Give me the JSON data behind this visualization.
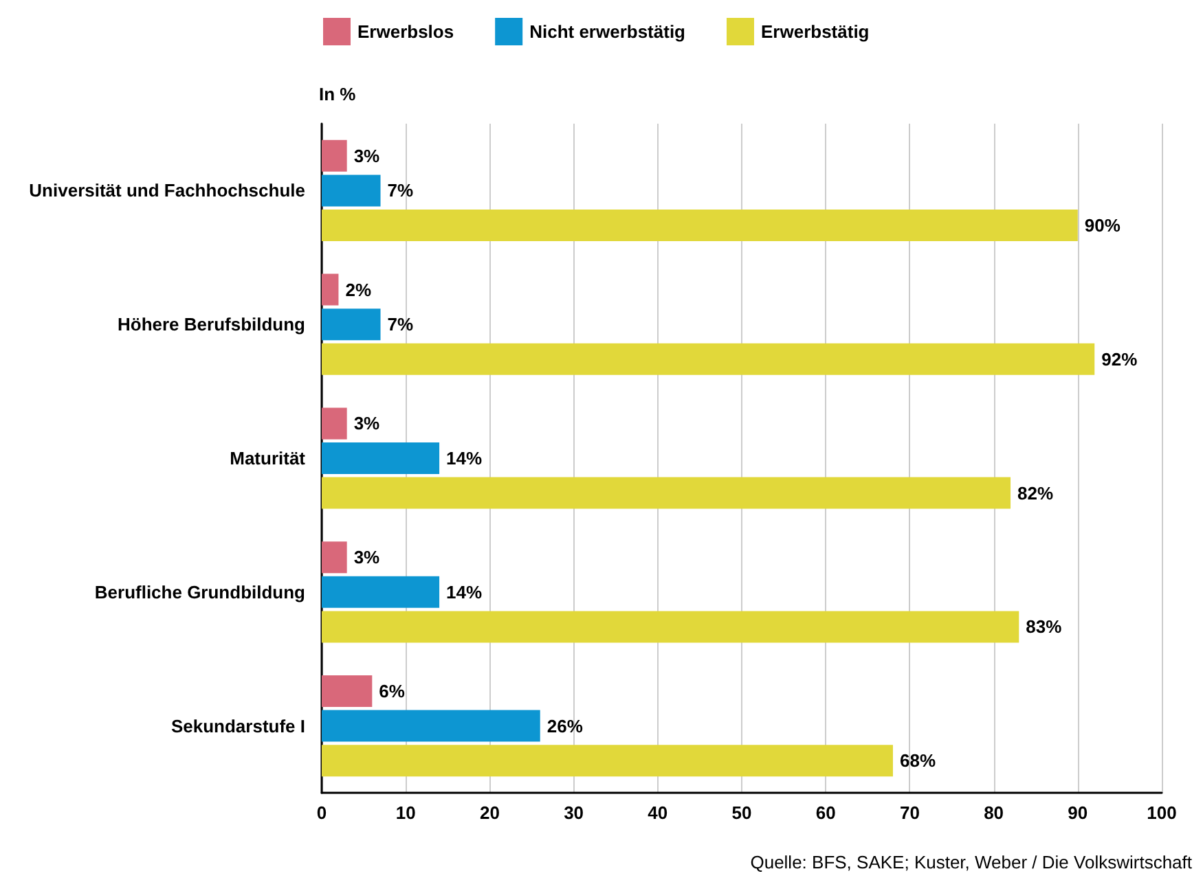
{
  "chart_data": {
    "type": "bar",
    "orientation": "horizontal",
    "xlabel": "In %",
    "categories": [
      "Universität und Fachhochschule",
      "Höhere Berufsbildung",
      "Maturität",
      "Berufliche Grundbildung",
      "Sekundarstufe I"
    ],
    "series": [
      {
        "name": "Erwerbslos",
        "color": "#d9687a",
        "values": [
          3,
          2,
          3,
          3,
          6
        ],
        "value_labels": [
          "3%",
          "2%",
          "3%",
          "3%",
          "6%"
        ]
      },
      {
        "name": "Nicht erwerbstätig",
        "color": "#0d96d2",
        "values": [
          7,
          7,
          14,
          14,
          26
        ],
        "value_labels": [
          "7%",
          "7%",
          "14%",
          "14%",
          "26%"
        ]
      },
      {
        "name": "Erwerbstätig",
        "color": "#e1d83a",
        "values": [
          90,
          92,
          82,
          83,
          68
        ],
        "value_labels": [
          "90%",
          "92%",
          "82%",
          "83%",
          "68%"
        ]
      }
    ],
    "xlim": [
      0,
      100
    ],
    "xticks": [
      0,
      10,
      20,
      30,
      40,
      50,
      60,
      70,
      80,
      90,
      100
    ],
    "grid": "x",
    "legend": "top left",
    "annotations": [
      "Quelle: BFS, SAKE; Kuster, Weber / Die Volkswirtschaft"
    ]
  }
}
